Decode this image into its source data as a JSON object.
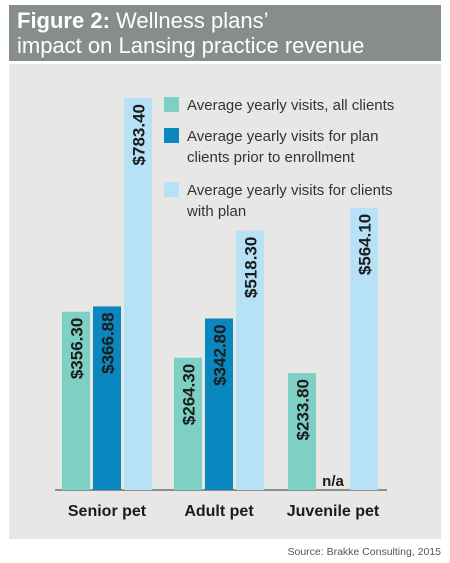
{
  "header": {
    "figure_label": "Figure 2:",
    "title_rest": "Wellness plans’",
    "title_line2": "impact on Lansing practice revenue"
  },
  "source": "Source: Brakke Consulting, 2015",
  "colors": {
    "header_bg": "#878d8d",
    "panel_bg": "#e7e7e6",
    "series": [
      "#7fd0c4",
      "#0a87be",
      "#b6e1f6"
    ]
  },
  "chart_data": {
    "type": "bar",
    "title": "Wellness plans’ impact on Lansing practice revenue",
    "categories": [
      "Senior pet",
      "Adult pet",
      "Juvenile pet"
    ],
    "series": [
      {
        "name": "Average yearly visits, all clients",
        "values": [
          356.3,
          264.3,
          233.8
        ],
        "labels": [
          "$356.30",
          "$264.30",
          "$233.80"
        ]
      },
      {
        "name": "Average yearly visits for plan clients prior to enrollment",
        "values": [
          366.88,
          342.8,
          null
        ],
        "labels": [
          "$366.88",
          "$342.80",
          "n/a"
        ]
      },
      {
        "name": "Average yearly visits for clients with plan",
        "values": [
          783.4,
          518.3,
          564.1
        ],
        "labels": [
          "$783.40",
          "$518.30",
          "$564.10"
        ]
      }
    ],
    "legend_lines": [
      [
        "Average yearly visits, all clients"
      ],
      [
        "Average yearly visits for plan",
        "clients prior to enrollment"
      ],
      [
        "Average yearly visits for clients",
        "with plan"
      ]
    ],
    "ylim": [
      0,
      783.4
    ],
    "legend_position": "top-right",
    "grid": false
  }
}
